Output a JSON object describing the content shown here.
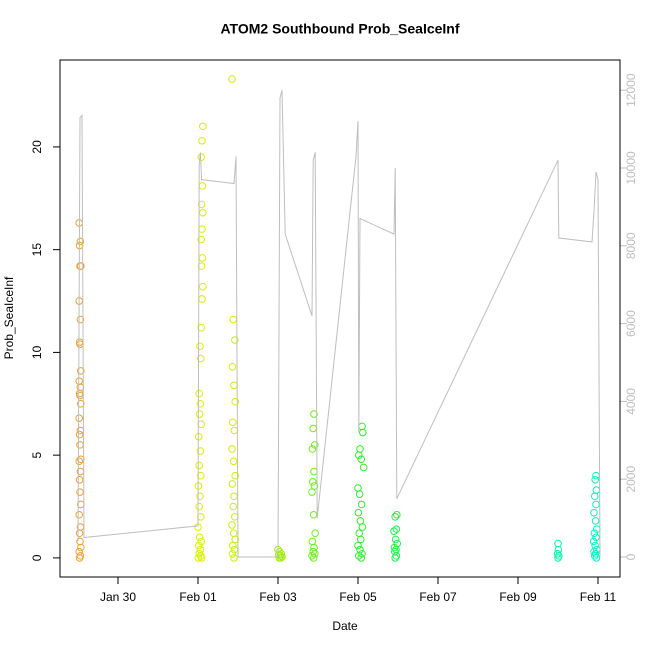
{
  "chart_data": {
    "type": "scatter",
    "title": "ATOM2 Southbound Prob_SeaIceInf",
    "x_label": "Date",
    "y_label": "Prob_SeaIceInf",
    "xlim": [
      28.55,
      42.55
    ],
    "ylim": [
      -0.93,
      24.23
    ],
    "y2lim": [
      -514,
      12776
    ],
    "xticks": [
      {
        "value": 30,
        "label": "Jan 30"
      },
      {
        "value": 32,
        "label": "Feb 01"
      },
      {
        "value": 34,
        "label": "Feb 03"
      },
      {
        "value": 36,
        "label": "Feb 05"
      },
      {
        "value": 38,
        "label": "Feb 07"
      },
      {
        "value": 40,
        "label": "Feb 09"
      },
      {
        "value": 42,
        "label": "Feb 11"
      }
    ],
    "yticks": [
      0,
      5,
      10,
      15,
      20
    ],
    "y2ticks": [
      0,
      2000,
      4000,
      6000,
      8000,
      10000,
      12000
    ],
    "series": [
      {
        "color": "#f0a030",
        "x": [
          29.03,
          29.06,
          29.04,
          29.07,
          29.05,
          29.03,
          29.06,
          29.04,
          29.05,
          29.07,
          29.03,
          29.06,
          29.04,
          29.05,
          29.07,
          29.03,
          29.06,
          29.04,
          29.05,
          29.07,
          29.03,
          29.06,
          29.04,
          29.05,
          29.07,
          29.03,
          29.06,
          29.04,
          29.05,
          29.07,
          29.03,
          29.06,
          29.04
        ],
        "values": [
          16.3,
          15.4,
          15.2,
          14.2,
          14.2,
          12.5,
          11.6,
          10.5,
          10.4,
          9.1,
          8.6,
          8.3,
          8.0,
          7.9,
          7.5,
          6.8,
          6.2,
          6.0,
          5.5,
          4.8,
          4.7,
          4.2,
          3.8,
          3.2,
          2.6,
          2.1,
          1.5,
          1.2,
          0.8,
          0.5,
          0.3,
          0.1,
          0.0
        ]
      },
      {
        "color": "#d8f000",
        "x": [
          32.12,
          32.1,
          32.08,
          32.11,
          32.09,
          32.12,
          32.1,
          32.08,
          32.11,
          32.09,
          32.12,
          32.1,
          32.08,
          32.05,
          32.07,
          32.03,
          32.06,
          32.04,
          32.08,
          32.02,
          32.06,
          32.03,
          32.07,
          32.01,
          32.05,
          32.03,
          32.07,
          32.0,
          32.04,
          32.08,
          32.02,
          32.06,
          32.03,
          32.07,
          32.01,
          32.09
        ],
        "values": [
          21.0,
          20.3,
          19.5,
          18.1,
          17.2,
          16.8,
          16.0,
          15.5,
          14.6,
          14.2,
          13.2,
          12.6,
          11.2,
          10.3,
          9.7,
          8.0,
          7.5,
          7.0,
          6.5,
          5.9,
          5.2,
          4.5,
          4.0,
          3.5,
          3.0,
          2.5,
          2.0,
          1.5,
          1.0,
          0.8,
          0.6,
          0.4,
          0.2,
          0.1,
          0.0,
          0.0
        ]
      },
      {
        "color": "#c8f010",
        "x": [
          32.85,
          32.88,
          32.92,
          32.86,
          32.9,
          32.93,
          32.87,
          32.91,
          32.85,
          32.89,
          32.93,
          32.86,
          32.9,
          32.88,
          32.92,
          32.85,
          32.89,
          32.93,
          32.87,
          32.91,
          32.86,
          32.9
        ],
        "values": [
          23.3,
          11.6,
          10.6,
          9.3,
          8.4,
          7.6,
          6.6,
          6.2,
          5.3,
          4.7,
          4.0,
          3.6,
          3.0,
          2.5,
          2.0,
          1.6,
          1.2,
          0.9,
          0.6,
          0.4,
          0.2,
          0.0
        ]
      },
      {
        "color": "#a0ee10",
        "x": [
          34.0,
          34.04,
          34.08,
          34.02,
          34.06,
          34.1,
          34.03,
          34.07
        ],
        "values": [
          0.4,
          0.3,
          0.2,
          0.15,
          0.1,
          0.05,
          0.0,
          0.0
        ]
      },
      {
        "color": "#70ee20",
        "x": [
          34.9,
          34.88,
          34.92,
          34.86,
          34.9,
          34.87,
          34.91,
          34.85,
          34.89,
          34.93,
          34.86,
          34.9,
          34.88,
          34.92,
          34.85,
          34.89
        ],
        "values": [
          7.0,
          6.3,
          5.5,
          5.3,
          4.2,
          3.7,
          3.5,
          3.2,
          2.1,
          1.2,
          0.8,
          0.5,
          0.3,
          0.2,
          0.1,
          0.0
        ]
      },
      {
        "color": "#30ee30",
        "x": [
          36.1,
          36.12,
          36.05,
          36.02,
          36.08,
          36.14,
          36.0,
          36.04,
          36.09,
          36.01,
          36.06,
          36.11,
          36.03,
          36.07,
          36.0,
          36.05,
          36.1,
          36.02,
          36.08
        ],
        "values": [
          6.4,
          6.1,
          5.3,
          5.0,
          4.8,
          4.4,
          3.4,
          3.1,
          2.6,
          2.2,
          1.8,
          1.5,
          1.2,
          0.9,
          0.6,
          0.4,
          0.2,
          0.1,
          0.0
        ]
      },
      {
        "color": "#20ee50",
        "x": [
          36.97,
          36.93,
          36.96,
          36.9,
          36.94,
          36.98,
          36.91,
          36.95,
          36.92,
          36.96,
          36.93
        ],
        "values": [
          2.1,
          2.0,
          1.4,
          1.3,
          0.9,
          0.7,
          0.5,
          0.4,
          0.3,
          0.1,
          0.0
        ]
      },
      {
        "color": "#10eea8",
        "x": [
          41.0,
          41.01,
          40.99,
          41.02,
          41.0
        ],
        "values": [
          0.7,
          0.4,
          0.2,
          0.1,
          0.0
        ]
      },
      {
        "color": "#10eec0",
        "x": [
          41.95,
          41.93,
          41.96,
          41.92,
          41.95,
          41.9,
          41.94,
          41.97,
          41.91,
          41.95,
          41.89,
          41.93,
          41.97,
          41.9,
          41.94,
          41.92,
          41.96
        ],
        "values": [
          4.0,
          3.8,
          3.3,
          3.0,
          2.6,
          2.2,
          1.8,
          1.4,
          1.2,
          1.0,
          0.8,
          0.6,
          0.4,
          0.3,
          0.2,
          0.1,
          0.0
        ]
      },
      {
        "type": "line",
        "axis": "y2",
        "color": "#bebebe",
        "x": [
          29.0,
          29.05,
          29.1,
          29.15,
          32.0,
          32.03,
          32.06,
          32.09,
          32.9,
          32.95,
          33.0,
          34.0,
          34.05,
          34.1,
          34.18,
          34.85,
          34.88,
          34.93,
          34.98,
          35.95,
          36.0,
          36.02,
          36.05,
          36.9,
          36.93,
          36.97,
          41.0,
          41.02,
          41.85,
          41.9,
          41.95,
          42.0,
          42.05
        ],
        "values": [
          400,
          11300,
          11350,
          500,
          800,
          10100,
          10400,
          9700,
          9600,
          10300,
          0,
          0,
          11800,
          12000,
          8300,
          6200,
          10200,
          10400,
          1000,
          10300,
          11200,
          3200,
          8700,
          8300,
          10000,
          1500,
          10200,
          8200,
          8100,
          8900,
          9900,
          9700,
          0
        ]
      }
    ]
  }
}
